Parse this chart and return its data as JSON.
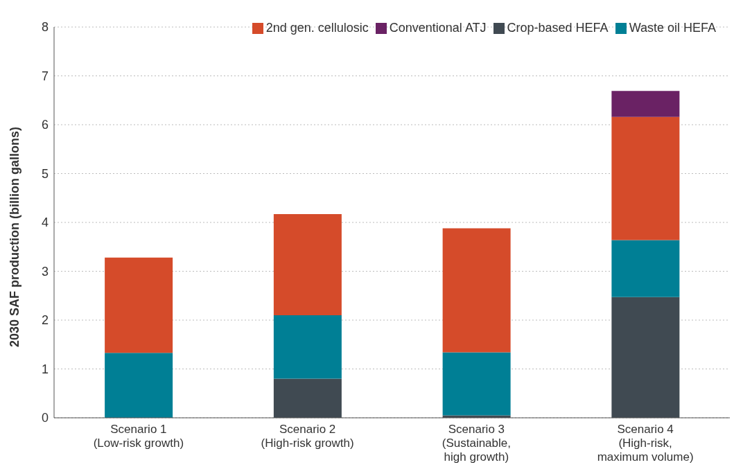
{
  "chart_data": {
    "type": "bar",
    "stacked": true,
    "ylabel": "2030 SAF production (billion gallons)",
    "categories": [
      "Scenario 1\n(Low-risk growth)",
      "Scenario 2\n(High-risk growth)",
      "Scenario 3\n(Sustainable,\nhigh growth)",
      "Scenario 4\n(High-risk,\nmaximum volume)"
    ],
    "series": [
      {
        "name": "Crop-based HEFA",
        "color": "#404a52",
        "values": [
          0,
          0.8,
          0.05,
          2.47
        ]
      },
      {
        "name": "Waste oil HEFA",
        "color": "#007f95",
        "values": [
          1.33,
          1.3,
          1.29,
          1.17
        ]
      },
      {
        "name": "2nd gen. cellulosic",
        "color": "#d54b2a",
        "values": [
          1.95,
          2.07,
          2.54,
          2.52
        ]
      },
      {
        "name": "Conventional ATJ",
        "color": "#6a2264",
        "values": [
          0,
          0,
          0,
          0.53
        ]
      }
    ],
    "ylim": [
      0,
      8
    ],
    "yticks": [
      0,
      1,
      2,
      3,
      4,
      5,
      6,
      7,
      8
    ],
    "grid": "y",
    "legend": "top right"
  }
}
